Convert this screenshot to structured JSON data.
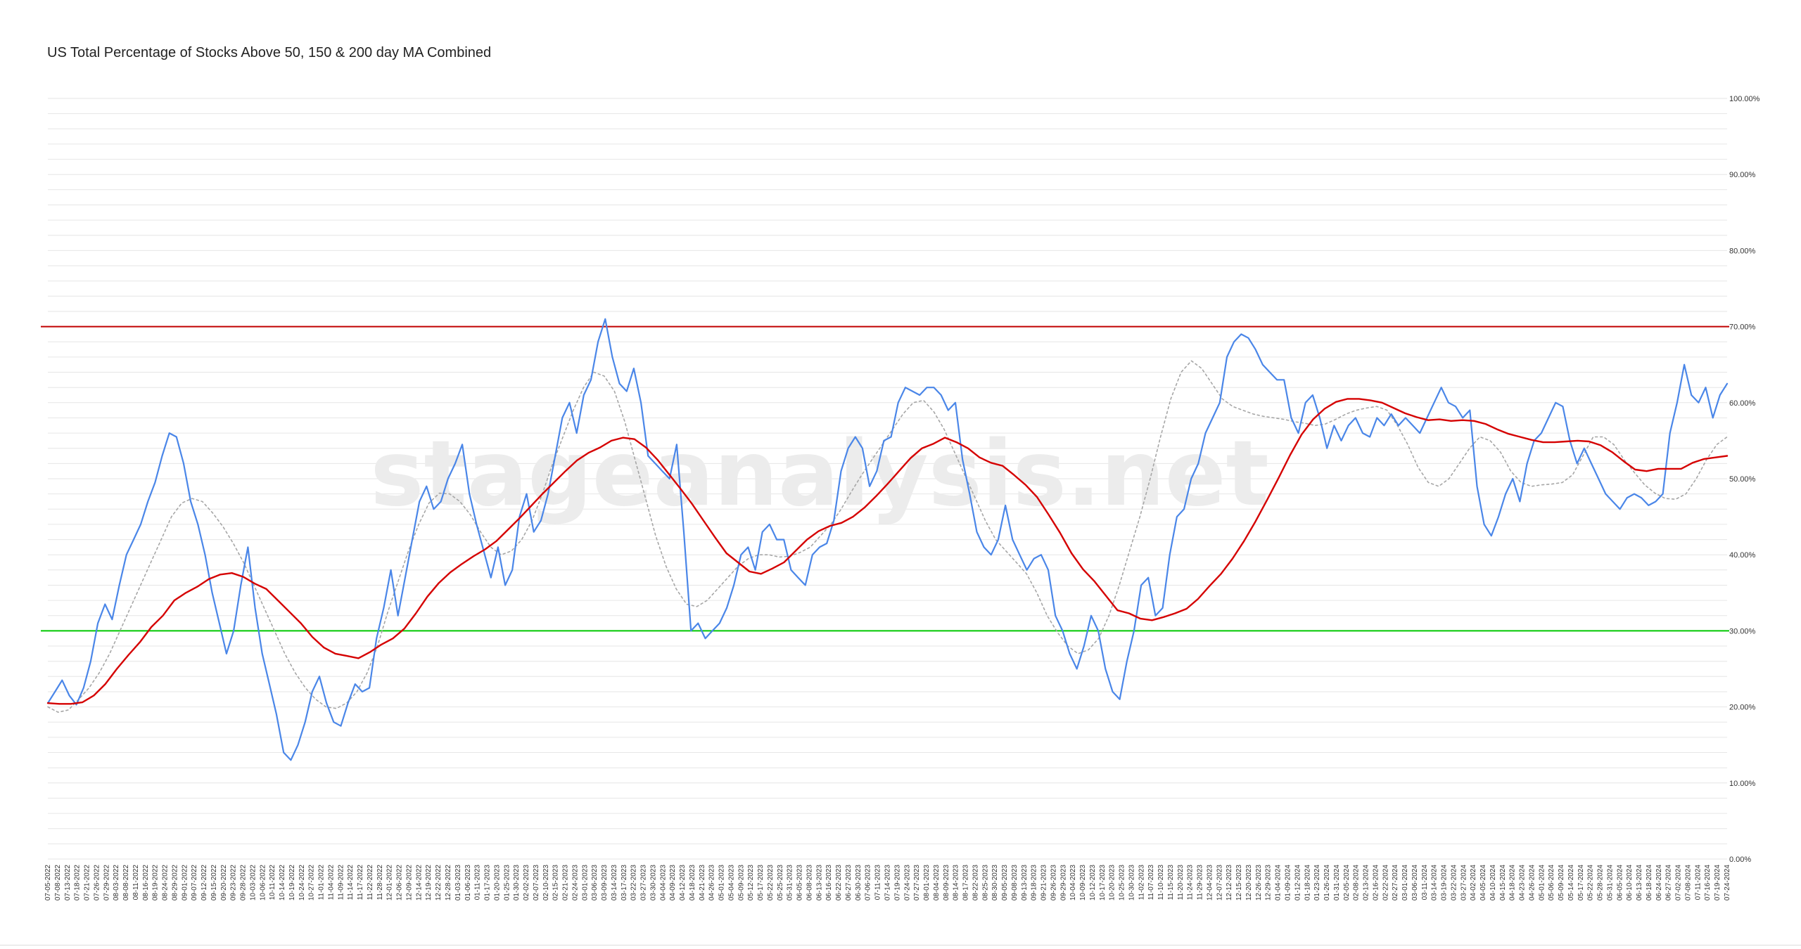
{
  "title": "US Total Percentage of Stocks Above 50, 150 & 200 day MA Combined",
  "watermark": "stageanalysis.net",
  "colors": {
    "main": "#4a86e8",
    "ma_fast": "#a6a6a6",
    "ma_slow": "#d50000",
    "ref_high": "#c00000",
    "ref_low": "#00c800",
    "grid": "#e6e6e6",
    "watermark": "#ececec"
  },
  "chart_data": {
    "type": "line",
    "title": "US Total Percentage of Stocks Above 50, 150 & 200 day MA Combined",
    "ylim": [
      0,
      100
    ],
    "y_ticks": [
      "0.00%",
      "10.00%",
      "20.00%",
      "30.00%",
      "40.00%",
      "50.00%",
      "60.00%",
      "70.00%",
      "80.00%",
      "90.00%",
      "100.00%"
    ],
    "grid": true,
    "reference_lines": [
      {
        "value": 70,
        "color": "#c00000"
      },
      {
        "value": 30,
        "color": "#00c800"
      }
    ],
    "x_tick_labels": [
      "07-05-2022",
      "07-08-2022",
      "07-13-2022",
      "07-18-2022",
      "07-21-2022",
      "07-26-2022",
      "07-29-2022",
      "08-03-2022",
      "08-08-2022",
      "08-11-2022",
      "08-16-2022",
      "08-19-2022",
      "08-24-2022",
      "08-29-2022",
      "09-01-2022",
      "09-07-2022",
      "09-12-2022",
      "09-15-2022",
      "09-20-2022",
      "09-23-2022",
      "09-28-2022",
      "10-03-2022",
      "10-06-2022",
      "10-11-2022",
      "10-14-2022",
      "10-19-2022",
      "10-24-2022",
      "10-27-2022",
      "11-01-2022",
      "11-04-2022",
      "11-09-2022",
      "11-14-2022",
      "11-17-2022",
      "11-22-2022",
      "11-28-2022",
      "12-01-2022",
      "12-06-2022",
      "12-09-2022",
      "12-14-2022",
      "12-19-2022",
      "12-22-2022",
      "12-28-2022",
      "01-03-2023",
      "01-06-2023",
      "01-11-2023",
      "01-17-2023",
      "01-20-2023",
      "01-25-2023",
      "01-30-2023",
      "02-02-2023",
      "02-07-2023",
      "02-10-2023",
      "02-15-2023",
      "02-21-2023",
      "02-24-2023",
      "03-01-2023",
      "03-06-2023",
      "03-09-2023",
      "03-14-2023",
      "03-17-2023",
      "03-22-2023",
      "03-27-2023",
      "03-30-2023",
      "04-04-2023",
      "04-09-2023",
      "04-12-2023",
      "04-18-2023",
      "04-21-2023",
      "04-26-2023",
      "05-01-2023",
      "05-04-2023",
      "05-09-2023",
      "05-12-2023",
      "05-17-2023",
      "05-22-2023",
      "05-25-2023",
      "05-31-2023",
      "06-05-2023",
      "06-08-2023",
      "06-13-2023",
      "06-16-2023",
      "06-22-2023",
      "06-27-2023",
      "06-30-2023",
      "07-06-2023",
      "07-11-2023",
      "07-14-2023",
      "07-19-2023",
      "07-24-2023",
      "07-27-2023",
      "08-01-2023",
      "08-04-2023",
      "08-09-2023",
      "08-14-2023",
      "08-17-2023",
      "08-22-2023",
      "08-25-2023",
      "08-30-2023",
      "09-05-2023",
      "09-08-2023",
      "09-13-2023",
      "09-18-2023",
      "09-21-2023",
      "09-26-2023",
      "09-29-2023",
      "10-04-2023",
      "10-09-2023",
      "10-12-2023",
      "10-17-2023",
      "10-20-2023",
      "10-25-2023",
      "10-30-2023",
      "11-02-2023",
      "11-07-2023",
      "11-10-2023",
      "11-15-2023",
      "11-20-2023",
      "11-24-2023",
      "11-29-2023",
      "12-04-2023",
      "12-07-2023",
      "12-12-2023",
      "12-15-2023",
      "12-20-2023",
      "12-26-2023",
      "12-29-2023",
      "01-04-2024",
      "01-09-2024",
      "01-12-2024",
      "01-18-2024",
      "01-23-2024",
      "01-26-2024",
      "01-31-2024",
      "02-05-2024",
      "02-08-2024",
      "02-13-2024",
      "02-16-2024",
      "02-22-2024",
      "02-27-2024",
      "03-01-2024",
      "03-06-2024",
      "03-11-2024",
      "03-14-2024",
      "03-19-2024",
      "03-22-2024",
      "03-27-2024",
      "04-02-2024",
      "04-05-2024",
      "04-10-2024",
      "04-15-2024",
      "04-18-2024",
      "04-23-2024",
      "04-26-2024",
      "05-01-2024",
      "05-06-2024",
      "05-09-2024",
      "05-14-2024",
      "05-17-2024",
      "05-22-2024",
      "05-28-2024",
      "05-31-2024",
      "06-05-2024",
      "06-10-2024",
      "06-13-2024",
      "06-18-2024",
      "06-24-2024",
      "06-27-2024",
      "07-02-2024",
      "07-08-2024",
      "07-11-2024",
      "07-16-2024",
      "07-19-2024",
      "07-24-2024"
    ],
    "series": [
      {
        "values": [
          20.5,
          22,
          23.5,
          21.5,
          20.3,
          22.5,
          26,
          31,
          33.5,
          31.5,
          36,
          40,
          42,
          44,
          47,
          49.5,
          53,
          56,
          55.5,
          52,
          47,
          44,
          40,
          35,
          31,
          27,
          30,
          36,
          41,
          33,
          27,
          23,
          19,
          14,
          13,
          15,
          18,
          22,
          24,
          20.5,
          18,
          17.5,
          20.5,
          23,
          22,
          22.5,
          29,
          33,
          38,
          32,
          37,
          42,
          47,
          49,
          46,
          47,
          50,
          52,
          54.5,
          48,
          44,
          40.5,
          37,
          41,
          36,
          38,
          45,
          48,
          43,
          44.5,
          48,
          53,
          58,
          60,
          56,
          61,
          63,
          68,
          71,
          66,
          62.5,
          61.5,
          64.5,
          60,
          53,
          52,
          51,
          50,
          54.5,
          43,
          30,
          31,
          29,
          30,
          31,
          33,
          36,
          40,
          41,
          38,
          43,
          44,
          42,
          42,
          38,
          37,
          36,
          40,
          41,
          41.5,
          44.5,
          51,
          54,
          55.5,
          54,
          49,
          51,
          55,
          55.5,
          60,
          62,
          61.5,
          61,
          62,
          62,
          61,
          59,
          60,
          52.5,
          48,
          43,
          41,
          40,
          42,
          46.5,
          42,
          40,
          38,
          39.5,
          40,
          38,
          32,
          30,
          27,
          25,
          28,
          32,
          30,
          25,
          22,
          21,
          26,
          30,
          36,
          37,
          32,
          33,
          40,
          45,
          46,
          50,
          52,
          56,
          58,
          60,
          66,
          68,
          69,
          68.5,
          67,
          65,
          64,
          63,
          63,
          58,
          56,
          60,
          61,
          58,
          54,
          57,
          55,
          57,
          58,
          56,
          55.5,
          58,
          57,
          58.5,
          57,
          58,
          57,
          56,
          58,
          60,
          62,
          60,
          59.5,
          58,
          59,
          49,
          44,
          42.5,
          45,
          48,
          50,
          47,
          52,
          55,
          56,
          58,
          60,
          59.5,
          55,
          52,
          54,
          52,
          50,
          48,
          47,
          46,
          47.5,
          48,
          47.5,
          46.5,
          47,
          48,
          56,
          60,
          65,
          61,
          60,
          62,
          58,
          61,
          62.5
        ]
      },
      {
        "values": [
          20,
          19.3,
          19.6,
          21,
          22.5,
          24.5,
          27,
          30,
          33,
          36,
          39,
          42,
          45,
          46.8,
          47.4,
          47,
          45.5,
          43.7,
          41.5,
          39,
          36,
          33,
          30,
          27,
          24.5,
          22.5,
          21,
          20,
          19.8,
          20.5,
          22,
          24.5,
          28,
          32.5,
          36.5,
          40.5,
          44,
          46.8,
          48.1,
          48,
          47,
          45.3,
          43,
          41,
          40,
          40.5,
          42,
          44.5,
          48,
          52,
          55.5,
          59,
          62,
          64,
          63.5,
          61.5,
          57.5,
          52.5,
          47.5,
          42.5,
          38.5,
          35.5,
          33.5,
          33.2,
          34,
          35.5,
          37,
          38.5,
          39.5,
          40,
          40,
          39.7,
          39.8,
          40.3,
          41,
          42.5,
          44,
          46,
          48.3,
          50.5,
          52.5,
          54.5,
          56.5,
          58.5,
          60,
          60.3,
          58.8,
          56.5,
          53.5,
          50.5,
          47.5,
          44.5,
          42,
          40.5,
          39,
          37.5,
          35,
          32,
          29.8,
          28,
          27,
          27.5,
          29,
          32,
          36,
          40.5,
          45,
          50,
          55.5,
          60.5,
          64,
          65.5,
          64.5,
          62.5,
          60.5,
          59.5,
          59,
          58.5,
          58.2,
          58,
          57.8,
          57.5,
          57.3,
          57,
          57.2,
          57.8,
          58.5,
          59,
          59.3,
          59.5,
          59,
          57,
          54.5,
          51.5,
          49.5,
          49,
          50,
          52,
          54,
          55.5,
          55,
          53.5,
          51,
          49.5,
          49,
          49.2,
          49.3,
          49.5,
          50.5,
          53,
          55.5,
          55.5,
          54.5,
          52.5,
          50.8,
          49.2,
          48.1,
          47.4,
          47.3,
          48,
          50,
          52.5,
          54.5,
          55.5
        ]
      },
      {
        "values": [
          20.5,
          20.4,
          20.4,
          20.6,
          21.5,
          23,
          25,
          26.8,
          28.5,
          30.5,
          32,
          34,
          35,
          35.8,
          36.8,
          37.4,
          37.6,
          37.1,
          36.2,
          35.5,
          34,
          32.5,
          31,
          29.2,
          27.8,
          27,
          26.7,
          26.4,
          27.2,
          28.2,
          29,
          30.3,
          32.3,
          34.5,
          36.3,
          37.7,
          38.8,
          39.8,
          40.7,
          41.8,
          43.3,
          44.8,
          46.4,
          48,
          49.5,
          51,
          52.4,
          53.4,
          54.1,
          55,
          55.4,
          55.2,
          54.1,
          52.5,
          50.6,
          48.7,
          46.7,
          44.5,
          42.3,
          40.2,
          39,
          37.8,
          37.5,
          38.2,
          39,
          40.5,
          42,
          43.1,
          43.8,
          44.2,
          45,
          46.2,
          47.7,
          49.3,
          51,
          52.7,
          54,
          54.6,
          55.4,
          54.8,
          54,
          52.8,
          52.1,
          51.7,
          50.5,
          49.2,
          47.6,
          45.3,
          42.9,
          40.2,
          38.1,
          36.5,
          34.6,
          32.7,
          32.3,
          31.6,
          31.4,
          31.8,
          32.3,
          32.9,
          34.2,
          35.9,
          37.5,
          39.5,
          41.8,
          44.4,
          47.2,
          50.1,
          53.1,
          55.8,
          57.8,
          59.2,
          60.1,
          60.5,
          60.5,
          60.3,
          60,
          59.3,
          58.6,
          58.1,
          57.7,
          57.8,
          57.6,
          57.7,
          57.6,
          57.2,
          56.5,
          55.9,
          55.5,
          55.1,
          54.8,
          54.8,
          54.9,
          55,
          54.9,
          54.4,
          53.5,
          52.3,
          51.2,
          51,
          51.3,
          51.3,
          51.3,
          52.1,
          52.6,
          52.8,
          53
        ]
      }
    ]
  }
}
